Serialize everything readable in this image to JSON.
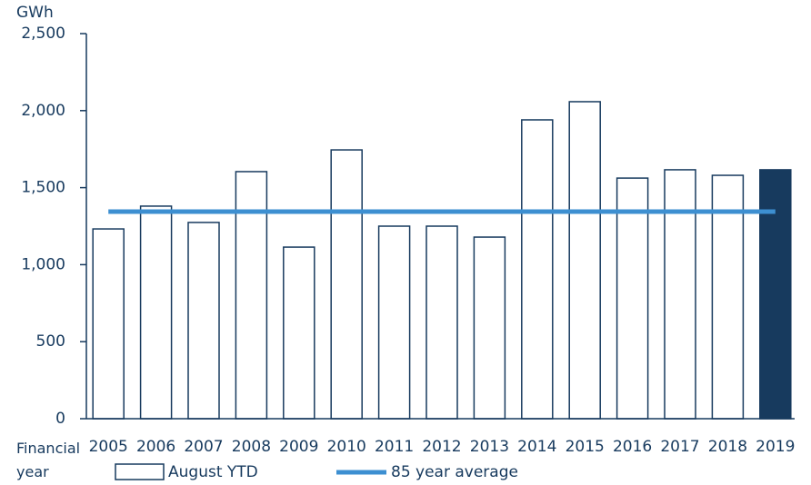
{
  "chart_data": {
    "type": "bar",
    "ylabel": "GWh",
    "xlabel": "Financial year",
    "categories": [
      "2005",
      "2006",
      "2007",
      "2008",
      "2009",
      "2010",
      "2011",
      "2012",
      "2013",
      "2014",
      "2015",
      "2016",
      "2017",
      "2018",
      "2019"
    ],
    "series": [
      {
        "name": "August YTD",
        "stroke": "#173a5e",
        "values": [
          1232,
          1380,
          1274,
          1604,
          1114,
          1745,
          1250,
          1250,
          1179,
          1940,
          2058,
          1562,
          1616,
          1580,
          1616
        ],
        "colors": [
          "#ffffff",
          "#ffffff",
          "#ffffff",
          "#ffffff",
          "#ffffff",
          "#ffffff",
          "#ffffff",
          "#ffffff",
          "#ffffff",
          "#ffffff",
          "#ffffff",
          "#ffffff",
          "#ffffff",
          "#ffffff",
          "#173a5e"
        ]
      }
    ],
    "reference_line": {
      "name": "85 year average",
      "value": 1344,
      "color": "#3d8fd1"
    },
    "ylim": [
      0,
      2500
    ],
    "yticks": [
      0,
      500,
      {
        "value": 1000,
        "label": "1,000"
      },
      {
        "value": 1500,
        "label": "1,500"
      },
      {
        "value": 2000,
        "label": "2,000"
      },
      {
        "value": 2500,
        "label": "2,500"
      }
    ]
  }
}
